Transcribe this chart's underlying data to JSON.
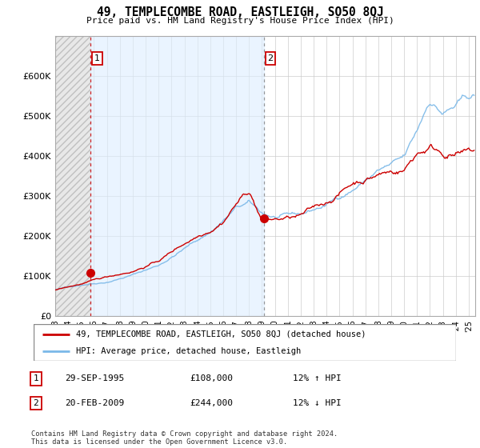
{
  "title": "49, TEMPLECOMBE ROAD, EASTLEIGH, SO50 8QJ",
  "subtitle": "Price paid vs. HM Land Registry's House Price Index (HPI)",
  "legend_line1": "49, TEMPLECOMBE ROAD, EASTLEIGH, SO50 8QJ (detached house)",
  "legend_line2": "HPI: Average price, detached house, Eastleigh",
  "transaction1_date": "29-SEP-1995",
  "transaction1_price": "£108,000",
  "transaction1_hpi": "12% ↑ HPI",
  "transaction2_date": "20-FEB-2009",
  "transaction2_price": "£244,000",
  "transaction2_hpi": "12% ↓ HPI",
  "footnote": "Contains HM Land Registry data © Crown copyright and database right 2024.\nThis data is licensed under the Open Government Licence v3.0.",
  "hpi_color": "#7ab8e8",
  "price_color": "#cc0000",
  "marker_color": "#cc0000",
  "ylim": [
    0,
    700000
  ],
  "yticks": [
    0,
    100000,
    200000,
    300000,
    400000,
    500000,
    600000
  ],
  "ytick_labels": [
    "£0",
    "£100K",
    "£200K",
    "£300K",
    "£400K",
    "£500K",
    "£600K"
  ],
  "grid_color": "#cccccc",
  "transaction1_x": 1995.75,
  "transaction1_y": 108000,
  "transaction2_x": 2009.13,
  "transaction2_y": 244000,
  "xmin": 1993.0,
  "xmax": 2025.5
}
